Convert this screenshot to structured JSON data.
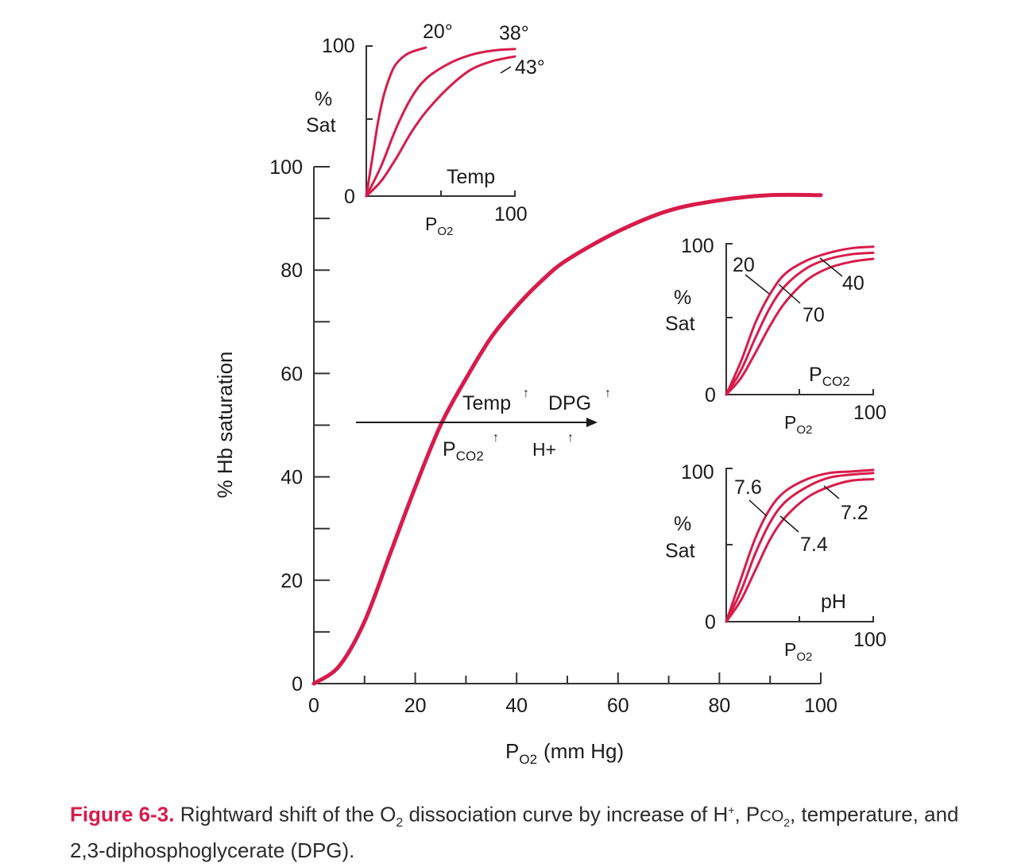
{
  "colors": {
    "curve": "#d81b4a",
    "axis": "#333333",
    "caption_label": "#d81b4a"
  },
  "chart_data": [
    {
      "type": "line",
      "id": "main",
      "xlabel_base": "P",
      "xlabel_sub": "O2",
      "xlabel_unit": "(mm Hg)",
      "ylabel": "% Hb saturation",
      "xlim": [
        0,
        100
      ],
      "ylim": [
        0,
        100
      ],
      "x_ticks": [
        "0",
        "20",
        "40",
        "60",
        "80",
        "100"
      ],
      "y_ticks": [
        "0",
        "20",
        "40",
        "60",
        "80",
        "100"
      ],
      "series": [
        {
          "values": [
            [
              0,
              0
            ],
            [
              5,
              3.4
            ],
            [
              10,
              12
            ],
            [
              15,
              25
            ],
            [
              20,
              38
            ],
            [
              25,
              50
            ],
            [
              30,
              59
            ],
            [
              35,
              67
            ],
            [
              40,
              73
            ],
            [
              45,
              78
            ],
            [
              50,
              82
            ],
            [
              60,
              87.5
            ],
            [
              70,
              91.5
            ],
            [
              80,
              93.5
            ],
            [
              90,
              94.5
            ],
            [
              100,
              94.5
            ]
          ]
        }
      ],
      "annotation": {
        "temp_label": "Temp",
        "dpg_label": "DPG",
        "pco2_base": "P",
        "pco2_sub": "CO2",
        "h_label": "H+",
        "up_arrow": "↑"
      }
    },
    {
      "type": "line",
      "id": "inset-temp",
      "ylabel_line1": "%",
      "ylabel_line2": "Sat",
      "xlabel_base": "P",
      "xlabel_sub": "O2",
      "title": "Temp",
      "y_top": "100",
      "y_zero": "0",
      "x_end": "100",
      "series": [
        {
          "name": "20°",
          "values": [
            [
              0,
              0
            ],
            [
              4,
              25
            ],
            [
              8,
              50
            ],
            [
              12,
              68
            ],
            [
              16,
              80
            ],
            [
              20,
              88
            ],
            [
              28,
              95
            ],
            [
              40,
              99
            ]
          ]
        },
        {
          "name": "38°",
          "values": [
            [
              0,
              0
            ],
            [
              10,
              20
            ],
            [
              20,
              45
            ],
            [
              30,
              65
            ],
            [
              40,
              78
            ],
            [
              55,
              88
            ],
            [
              70,
              94
            ],
            [
              85,
              97
            ],
            [
              100,
              98
            ]
          ]
        },
        {
          "name": "43°",
          "values": [
            [
              0,
              0
            ],
            [
              10,
              10
            ],
            [
              20,
              25
            ],
            [
              30,
              42
            ],
            [
              40,
              56
            ],
            [
              55,
              72
            ],
            [
              70,
              84
            ],
            [
              85,
              90
            ],
            [
              100,
              93
            ]
          ]
        }
      ]
    },
    {
      "type": "line",
      "id": "inset-pco2",
      "ylabel_line1": "%",
      "ylabel_line2": "Sat",
      "xlabel_base": "P",
      "xlabel_sub": "O2",
      "title_base": "P",
      "title_sub": "CO2",
      "y_top": "100",
      "y_zero": "0",
      "x_end": "100",
      "series": [
        {
          "name": "20",
          "values": [
            [
              0,
              0
            ],
            [
              10,
              22
            ],
            [
              20,
              48
            ],
            [
              30,
              67
            ],
            [
              40,
              80
            ],
            [
              55,
              89
            ],
            [
              70,
              94
            ],
            [
              85,
              97
            ],
            [
              100,
              98
            ]
          ]
        },
        {
          "name": "40",
          "values": [
            [
              0,
              0
            ],
            [
              10,
              16
            ],
            [
              20,
              38
            ],
            [
              30,
              58
            ],
            [
              40,
              72
            ],
            [
              55,
              84
            ],
            [
              70,
              90
            ],
            [
              85,
              93
            ],
            [
              100,
              94
            ]
          ]
        },
        {
          "name": "70",
          "values": [
            [
              0,
              0
            ],
            [
              10,
              11
            ],
            [
              20,
              28
            ],
            [
              30,
              46
            ],
            [
              40,
              61
            ],
            [
              55,
              76
            ],
            [
              70,
              84
            ],
            [
              85,
              88
            ],
            [
              100,
              90
            ]
          ]
        }
      ]
    },
    {
      "type": "line",
      "id": "inset-ph",
      "ylabel_line1": "%",
      "ylabel_line2": "Sat",
      "xlabel_base": "P",
      "xlabel_sub": "O2",
      "title": "pH",
      "y_top": "100",
      "y_zero": "0",
      "x_end": "100",
      "series": [
        {
          "name": "7.6",
          "values": [
            [
              0,
              0
            ],
            [
              10,
              28
            ],
            [
              20,
              55
            ],
            [
              30,
              74
            ],
            [
              40,
              85
            ],
            [
              55,
              93
            ],
            [
              70,
              97
            ],
            [
              85,
              98
            ],
            [
              100,
              99
            ]
          ]
        },
        {
          "name": "7.4",
          "values": [
            [
              0,
              0
            ],
            [
              10,
              20
            ],
            [
              20,
              45
            ],
            [
              30,
              65
            ],
            [
              40,
              78
            ],
            [
              55,
              88
            ],
            [
              70,
              94
            ],
            [
              85,
              96
            ],
            [
              100,
              97
            ]
          ]
        },
        {
          "name": "7.2",
          "values": [
            [
              0,
              0
            ],
            [
              10,
              14
            ],
            [
              20,
              34
            ],
            [
              30,
              54
            ],
            [
              40,
              68
            ],
            [
              55,
              81
            ],
            [
              70,
              88
            ],
            [
              85,
              92
            ],
            [
              100,
              93
            ]
          ]
        }
      ]
    }
  ],
  "caption": {
    "label": "Figure 6-3.",
    "text_1": " Rightward shift of the O",
    "sub_1": "2",
    "text_2": " dissociation curve by increase of H",
    "sup_1": "+",
    "text_3": ", P",
    "small_1": "CO",
    "sub_2": "2",
    "text_4": ", temperature, and 2,3-diphosphoglycerate (DPG)."
  }
}
